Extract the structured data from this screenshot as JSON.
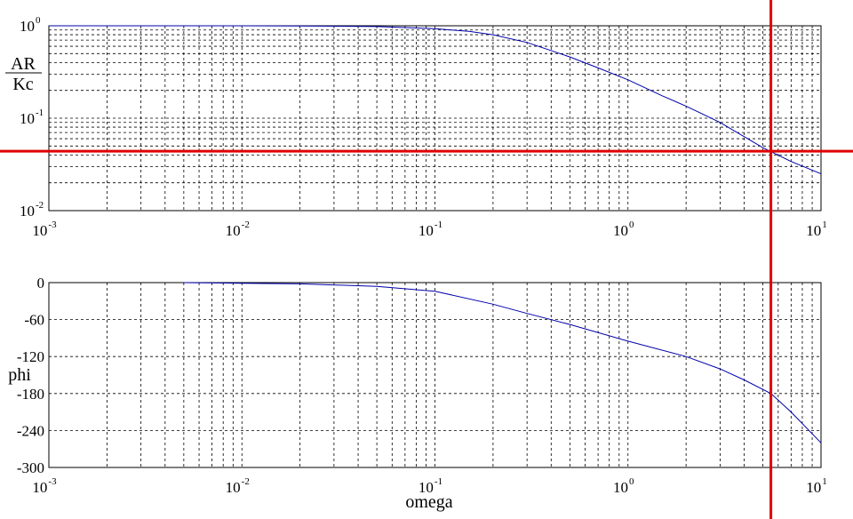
{
  "chart_data": [
    {
      "type": "line",
      "panel": "magnitude",
      "ylabel_num": "AR",
      "ylabel_den": "Kc",
      "xscale": "log",
      "yscale": "log",
      "xlim": [
        0.001,
        10
      ],
      "ylim": [
        0.01,
        1
      ],
      "grid": true,
      "x_ticks": [
        {
          "base": "10",
          "exp": "-3"
        },
        {
          "base": "10",
          "exp": "-2"
        },
        {
          "base": "10",
          "exp": "-1"
        },
        {
          "base": "10",
          "exp": "0"
        },
        {
          "base": "10",
          "exp": "1"
        }
      ],
      "y_ticks": [
        {
          "base": "10",
          "exp": "0"
        },
        {
          "base": "10",
          "exp": "-1"
        },
        {
          "base": "10",
          "exp": "-2"
        }
      ],
      "series": [
        {
          "color": "#0000aa",
          "x": [
            0.001,
            0.002,
            0.005,
            0.01,
            0.02,
            0.05,
            0.1,
            0.15,
            0.2,
            0.3,
            0.5,
            0.7,
            1,
            1.5,
            2,
            3,
            5,
            7,
            10
          ],
          "y": [
            1.0,
            1.0,
            1.0,
            1.0,
            0.995,
            0.98,
            0.93,
            0.87,
            0.8,
            0.66,
            0.46,
            0.35,
            0.26,
            0.175,
            0.135,
            0.09,
            0.048,
            0.034,
            0.025
          ]
        }
      ],
      "reference_lines": [
        {
          "orientation": "horizontal",
          "y": 0.044,
          "color": "#e00000"
        }
      ]
    },
    {
      "type": "line",
      "panel": "phase",
      "ylabel": "phi",
      "xlabel": "omega",
      "xscale": "log",
      "xlim": [
        0.001,
        10
      ],
      "ylim": [
        -300,
        0
      ],
      "grid": true,
      "x_ticks": [
        {
          "base": "10",
          "exp": "-3"
        },
        {
          "base": "10",
          "exp": "-2"
        },
        {
          "base": "10",
          "exp": "-1"
        },
        {
          "base": "10",
          "exp": "0"
        },
        {
          "base": "10",
          "exp": "1"
        }
      ],
      "y_ticks": [
        "0",
        "-60",
        "-120",
        "-180",
        "-240",
        "-300"
      ],
      "series": [
        {
          "color": "#0000aa",
          "x": [
            0.005,
            0.01,
            0.02,
            0.05,
            0.1,
            0.2,
            0.3,
            0.5,
            1,
            2,
            3,
            4,
            5.5,
            7,
            10
          ],
          "y": [
            0,
            -1,
            -2,
            -6,
            -14,
            -35,
            -50,
            -68,
            -95,
            -120,
            -140,
            -158,
            -180,
            -210,
            -260
          ]
        }
      ],
      "reference_lines": [
        {
          "orientation": "vertical",
          "x": 5.5,
          "color": "#e00000"
        }
      ]
    }
  ]
}
